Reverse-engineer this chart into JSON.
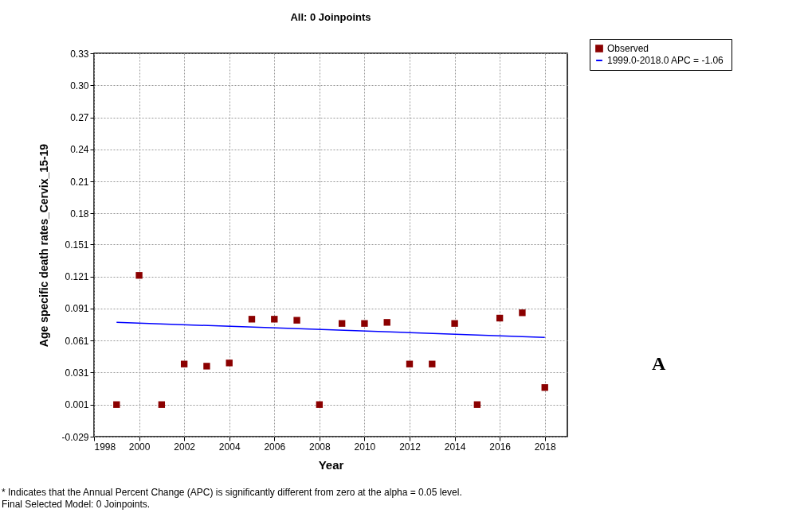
{
  "chart_data": {
    "type": "scatter",
    "title": "All: 0 Joinpoints",
    "xlabel": "Year",
    "ylabel": "Age specific death rates_Cervix_15-19",
    "x": [
      1999,
      2000,
      2001,
      2002,
      2003,
      2004,
      2005,
      2006,
      2007,
      2008,
      2009,
      2010,
      2011,
      2012,
      2013,
      2014,
      2015,
      2016,
      2017,
      2018
    ],
    "series": [
      {
        "name": "Observed",
        "marker": "square",
        "color": "#8b0000",
        "values": [
          0.001,
          0.122,
          0.001,
          0.039,
          0.037,
          0.04,
          0.081,
          0.081,
          0.08,
          0.001,
          0.077,
          0.077,
          0.078,
          0.039,
          0.039,
          0.077,
          0.001,
          0.082,
          0.087,
          0.017
        ]
      },
      {
        "name": "1999.0-2018.0 APC  = -1.06",
        "type": "line",
        "marker": "none",
        "color": "#0000ff",
        "x": [
          1999,
          2018
        ],
        "values": [
          0.078,
          0.064
        ]
      }
    ],
    "xlim": [
      1998,
      2019
    ],
    "xticks": [
      1998,
      2000,
      2002,
      2004,
      2006,
      2008,
      2010,
      2012,
      2014,
      2016,
      2018
    ],
    "ylim": [
      -0.029,
      0.33
    ],
    "yticks": [
      -0.029,
      0.001,
      0.031,
      0.061,
      0.091,
      0.121,
      0.151,
      0.18,
      0.21,
      0.24,
      0.27,
      {
        "value": 0.3,
        "label": "0.30"
      },
      0.33
    ],
    "grid": true,
    "legend": "top right",
    "annotations": [
      "A",
      "* Indicates that the Annual Percent Change (APC) is significantly different from zero at the alpha = 0.05 level.",
      "Final Selected Model: 0 Joinpoints."
    ]
  }
}
